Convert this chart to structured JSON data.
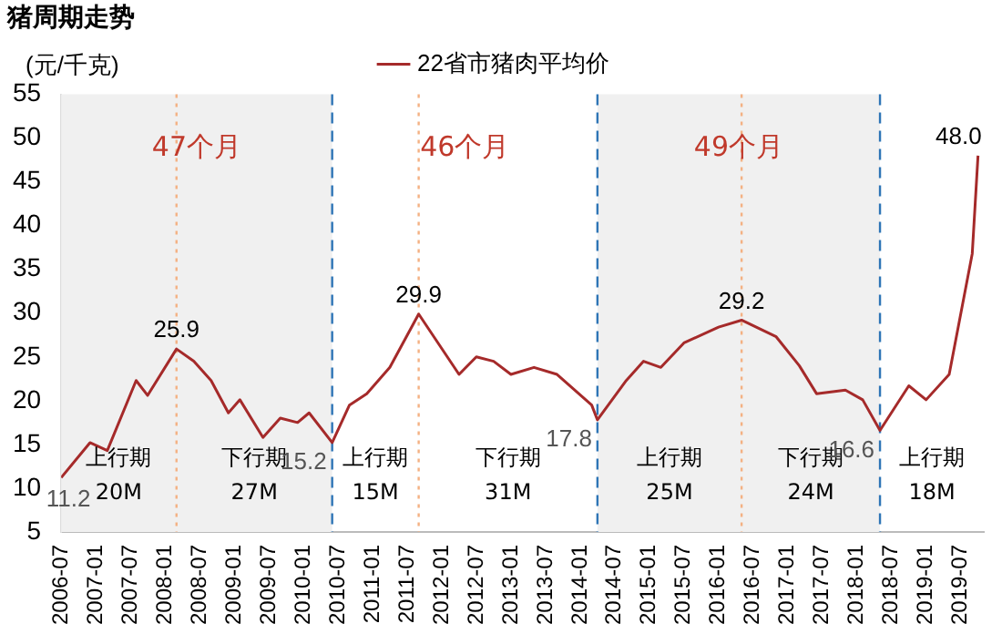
{
  "chart_data": {
    "type": "line",
    "title": "猪周期走势",
    "ylabel": "(元/千克)",
    "x": [
      "2006-07",
      "2006-12",
      "2007-03",
      "2007-08",
      "2007-10",
      "2008-03",
      "2008-06",
      "2008-09",
      "2008-12",
      "2009-02",
      "2009-06",
      "2009-09",
      "2009-12",
      "2010-02",
      "2010-06",
      "2010-09",
      "2010-12",
      "2011-04",
      "2011-09",
      "2012-04",
      "2012-07",
      "2012-10",
      "2013-01",
      "2013-05",
      "2013-09",
      "2014-03",
      "2014-04",
      "2014-09",
      "2014-12",
      "2015-03",
      "2015-07",
      "2016-01",
      "2016-05",
      "2016-11",
      "2017-03",
      "2017-06",
      "2017-11",
      "2018-02",
      "2018-05",
      "2018-10",
      "2019-01",
      "2019-05",
      "2019-09",
      "2019-10"
    ],
    "series": [
      {
        "name": "22省市猪肉平均价",
        "color": "#a52a2a",
        "values": [
          11.2,
          15.2,
          14.3,
          22.3,
          20.6,
          25.9,
          24.5,
          22.3,
          18.6,
          20.1,
          15.8,
          18.0,
          17.5,
          18.6,
          15.2,
          19.5,
          20.8,
          23.8,
          29.9,
          23.0,
          25.0,
          24.5,
          23.0,
          23.8,
          23.0,
          19.5,
          17.8,
          22.3,
          24.5,
          23.8,
          26.6,
          28.4,
          29.2,
          27.3,
          24.0,
          20.8,
          21.2,
          20.1,
          16.6,
          21.7,
          20.1,
          23.0,
          36.8,
          48.0
        ],
        "value_labels": [
          "11.2",
          null,
          null,
          null,
          null,
          "25.9",
          null,
          null,
          null,
          null,
          null,
          null,
          null,
          null,
          "15.2",
          null,
          null,
          null,
          "29.9",
          null,
          null,
          null,
          null,
          null,
          null,
          null,
          "17.8",
          null,
          null,
          null,
          null,
          null,
          "29.2",
          null,
          null,
          null,
          null,
          null,
          "16.6",
          null,
          null,
          null,
          null,
          "48.0"
        ]
      }
    ],
    "xlim": [
      "2006-07",
      "2019-11"
    ],
    "xticks": [
      "2006-07",
      "2007-01",
      "2007-07",
      "2008-01",
      "2008-07",
      "2009-01",
      "2009-07",
      "2010-01",
      "2010-07",
      "2011-01",
      "2011-07",
      "2012-01",
      "2012-07",
      "2013-01",
      "2013-07",
      "2014-01",
      "2014-07",
      "2015-01",
      "2015-07",
      "2016-01",
      "2016-07",
      "2017-01",
      "2017-07",
      "2018-01",
      "2018-07",
      "2019-01",
      "2019-07"
    ],
    "ylim": [
      5,
      55
    ],
    "yticks": [
      5,
      10,
      15,
      20,
      25,
      30,
      35,
      40,
      45,
      50,
      55
    ],
    "legend": "top",
    "grid": false,
    "marker": "none",
    "line_style": "solid",
    "bands": [
      {
        "axis": "x",
        "from": "2006-07",
        "to": "2010-06",
        "label": "47个月",
        "color": "#f0f0f0"
      },
      {
        "axis": "x",
        "from": "2014-04",
        "to": "2018-05",
        "label": "49个月",
        "color": "#f0f0f0"
      }
    ],
    "ref_lines": [
      {
        "axis": "x",
        "value": "2010-06",
        "color": "#2e75b6",
        "line_style": "dashed"
      },
      {
        "axis": "x",
        "value": "2014-04",
        "color": "#2e75b6",
        "line_style": "dashed"
      },
      {
        "axis": "x",
        "value": "2018-05",
        "color": "#2e75b6",
        "line_style": "dashed"
      },
      {
        "axis": "x",
        "value": "2008-03",
        "color": "#f4b183",
        "line_style": "dotted"
      },
      {
        "axis": "x",
        "value": "2011-09",
        "color": "#f4b183",
        "line_style": "dotted"
      },
      {
        "axis": "x",
        "value": "2016-05",
        "color": "#f4b183",
        "line_style": "dotted"
      }
    ],
    "annotations": [
      "46个月",
      "上行期\n20M",
      "下行期\n27M",
      "上行期\n15M",
      "下行期\n31M",
      "上行期\n25M",
      "下行期\n24M",
      "上行期\n18M"
    ]
  }
}
